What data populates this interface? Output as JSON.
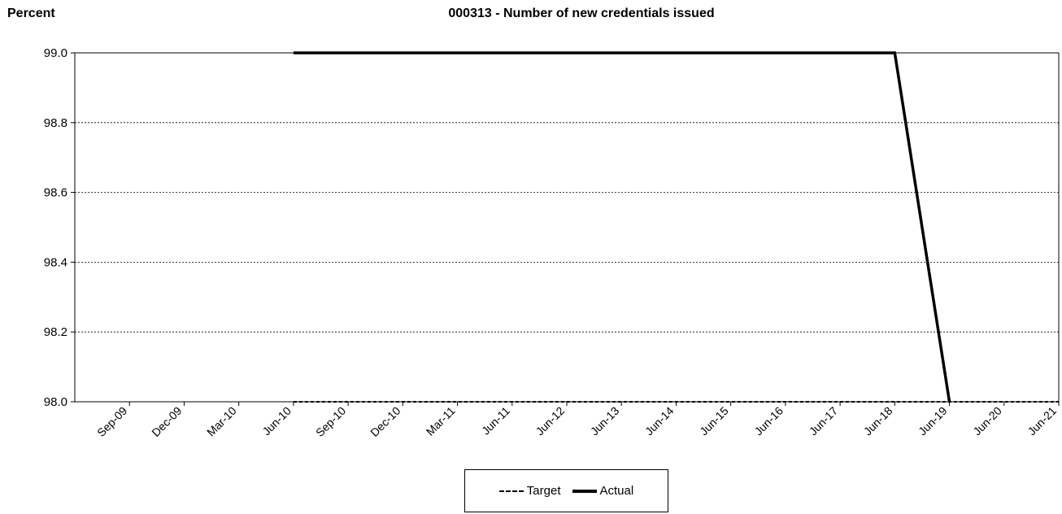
{
  "chart_data": {
    "type": "line",
    "title": "000313 - Number of new credentials issued",
    "ylabel": "Percent",
    "xlabel": "",
    "ylim": [
      98.0,
      99.0
    ],
    "yticks": [
      "99.0",
      "98.8",
      "98.6",
      "98.4",
      "98.2",
      "98.0"
    ],
    "categories": [
      "Sep-09",
      "Dec-09",
      "Mar-10",
      "Jun-10",
      "Sep-10",
      "Dec-10",
      "Mar-11",
      "Jun-11",
      "Jun-12",
      "Jun-13",
      "Jun-14",
      "Jun-15",
      "Jun-16",
      "Jun-17",
      "Jun-18",
      "Jun-19",
      "Jun-20",
      "Jun-21"
    ],
    "grid": true,
    "legend_position": "bottom",
    "series": [
      {
        "name": "Target",
        "style": "dashed",
        "color": "#000000",
        "values": [
          null,
          null,
          null,
          98.0,
          98.0,
          98.0,
          98.0,
          98.0,
          98.0,
          98.0,
          98.0,
          98.0,
          98.0,
          98.0,
          98.0,
          98.0,
          98.0,
          98.0
        ]
      },
      {
        "name": "Actual",
        "style": "solid",
        "color": "#000000",
        "values": [
          null,
          null,
          null,
          99.0,
          99.0,
          99.0,
          99.0,
          99.0,
          99.0,
          99.0,
          99.0,
          99.0,
          99.0,
          99.0,
          99.0,
          98.0,
          null,
          null
        ]
      }
    ]
  }
}
